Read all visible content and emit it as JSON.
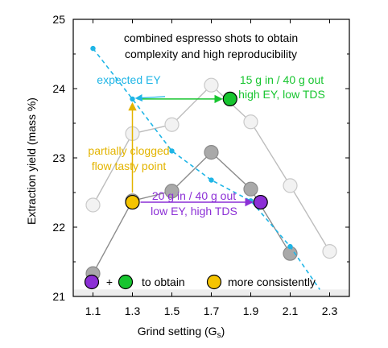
{
  "chart_data": {
    "type": "line",
    "title": "",
    "xlabel": "Grind setting (G",
    "xlabel_sub": "s",
    "xlabel_close": ")",
    "ylabel": "Extraction yield (mass %)",
    "xlim": [
      1.0,
      2.4
    ],
    "ylim": [
      21.0,
      25.0
    ],
    "x_ticks": [
      1.1,
      1.3,
      1.5,
      1.7,
      1.9,
      2.1,
      2.3
    ],
    "x_tick_labels": [
      "1.1",
      "1.3",
      "1.5",
      "1.7",
      "1.9",
      "2.1",
      "2.3"
    ],
    "y_ticks": [
      21,
      22,
      23,
      24,
      25
    ],
    "y_tick_labels": [
      "21",
      "22",
      "23",
      "24",
      "25"
    ],
    "grid": false,
    "series": [
      {
        "style": "light-gray",
        "color": "#bdbdbd",
        "x": [
          1.1,
          1.3,
          1.5,
          1.7,
          1.9,
          2.1,
          2.3
        ],
        "y": [
          22.32,
          23.35,
          23.48,
          24.05,
          23.52,
          22.6,
          21.65
        ]
      },
      {
        "style": "dark-gray",
        "color": "#8c8c8c",
        "x": [
          1.1,
          1.3,
          1.5,
          1.7,
          1.9,
          2.1
        ],
        "y": [
          21.33,
          22.38,
          22.52,
          23.08,
          22.55,
          21.62
        ]
      },
      {
        "style": "dashed-cyan",
        "color": "#1fb5e6",
        "x": [
          1.1,
          1.3,
          1.5,
          1.7,
          1.9,
          2.1,
          2.25
        ],
        "y": [
          24.58,
          23.85,
          23.1,
          22.68,
          22.38,
          21.72,
          21.1
        ]
      }
    ],
    "highlight_points": [
      {
        "x": 1.3,
        "y": 22.36,
        "color": "#f5c400",
        "stroke": "#000"
      },
      {
        "x": 1.795,
        "y": 23.85,
        "color": "#17c52f",
        "stroke": "#000"
      },
      {
        "x": 1.95,
        "y": 22.36,
        "color": "#8c2fd6",
        "stroke": "#000"
      }
    ],
    "annotations": {
      "combined_line1": "combined espresso shots to obtain",
      "combined_line2": "complexity and high reproducibility",
      "expected": "expected EY",
      "green_line1": "15 g in / 40 g out",
      "green_line2": "high EY, low TDS",
      "yellow_line1": "partially clogged",
      "yellow_line2": "flow tasty point",
      "purple_line1": "20 g in  / 40 g out",
      "purple_line2": "low EY, high TDS"
    },
    "legend_band": {
      "plus": "+",
      "to_obtain": "to obtain",
      "more_consistently": "more consistently",
      "background": "#ededed"
    },
    "colors": {
      "cyan": "#1fb5e6",
      "green": "#17c52f",
      "yellow": "#e3b400",
      "purple": "#8c2fd6"
    }
  }
}
